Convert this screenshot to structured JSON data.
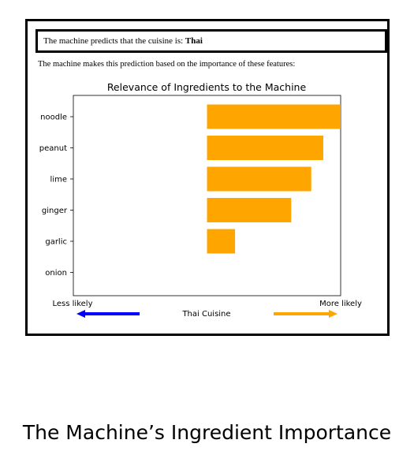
{
  "prediction": {
    "prefix": "The machine predicts that the cuisine is:",
    "cuisine": "Thai"
  },
  "explanation": "The machine makes this prediction based on the importance of these features:",
  "chart_data": {
    "type": "bar",
    "orientation": "horizontal",
    "title": "Relevance of Ingredients to the Machine",
    "categories": [
      "noodle",
      "peanut",
      "lime",
      "ginger",
      "garlic",
      "onion"
    ],
    "values": [
      1.0,
      0.87,
      0.78,
      0.63,
      0.21,
      0.0
    ],
    "xlim": [
      -1.0,
      1.0
    ],
    "grid": false,
    "xlabel": "Thai Cuisine",
    "x_left_label": "Less likely",
    "x_right_label": "More likely",
    "colors": {
      "bar": "#FFA500",
      "left_arrow": "#0000FF",
      "right_arrow": "#FFA500"
    }
  },
  "caption": "The Machine’s Ingredient Importance"
}
